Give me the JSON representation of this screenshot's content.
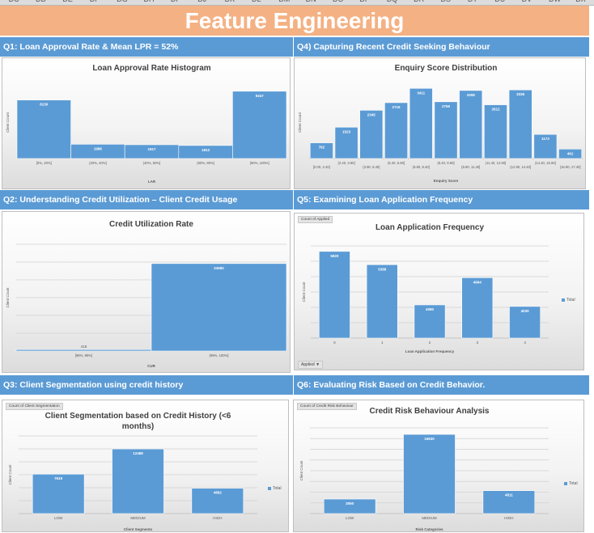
{
  "sheet": {
    "column_headers": [
      "DC",
      "DD",
      "DE",
      "DF",
      "DG",
      "DH",
      "DI",
      "DJ",
      "DK",
      "DL",
      "DM",
      "DN",
      "DO",
      "DP",
      "DQ",
      "DR",
      "DS",
      "DT",
      "DU",
      "DV",
      "DW",
      "DX"
    ],
    "title": "Feature Engineering",
    "colors": {
      "banner": "#f4b183",
      "section_bar": "#5b9bd5",
      "bar": "#5b9bd5"
    }
  },
  "sections": {
    "q1": "Q1: Loan Approval Rate & Mean LPR = 52%",
    "q2": "Q2: Understanding Credit Utilization – Client Credit Usage",
    "q3": "Q3: Client Segmentation using credit history",
    "q4": "Q4) Capturing Recent Credit Seeking Behaviour",
    "q5": "Q5: Examining Loan Application Frequency",
    "q6": "Q6: Evaluating Risk Based on Credit Behavior."
  },
  "chart_data": [
    {
      "id": "lar",
      "type": "bar",
      "title": "Loan Approval Rate Histogram",
      "xlabel": "LAR",
      "ylabel": "Client Count",
      "categories": [
        "[0%, 20%]",
        "(20%, 40%]",
        "(40%, 60%]",
        "(60%, 80%]",
        "(80%, 100%]"
      ],
      "values": [
        8130,
        1986,
        1917,
        1812,
        9347
      ],
      "ylim": [
        0,
        10000
      ],
      "grid": false,
      "legend": "none"
    },
    {
      "id": "enquiry",
      "type": "bar",
      "title": "Enquiry Score Distribution",
      "xlabel": "Enquiry Score",
      "ylabel": "Client Count",
      "categories": [
        "[0.00, 2.40]",
        "(2.40, 3.90]",
        "(3.90, 5.40]",
        "(5.40, 6.90]",
        "(6.90, 8.40]",
        "(8.40, 9.90]",
        "(9.90, 11.40]",
        "(11.40, 12.90]",
        "(12.90, 14.40]",
        "(14.40, 15.90]",
        "(15.90, 17.40]"
      ],
      "values": [
        762,
        1523,
        2345,
        2716,
        3411,
        2759,
        3308,
        2612,
        3335,
        1173,
        461
      ],
      "ylim": [
        0,
        3500
      ],
      "grid": false,
      "legend": "none"
    },
    {
      "id": "cur",
      "type": "bar",
      "title": "Credit Utilization Rate",
      "xlabel": "CUR",
      "ylabel": "Client Count",
      "categories": [
        "[98%, 99%]",
        "(99%, 100%]"
      ],
      "values": [
        418,
        24582
      ],
      "ylim": [
        0,
        30000
      ],
      "grid": true,
      "legend": "none"
    },
    {
      "id": "apps",
      "type": "bar",
      "title": "Loan Application Frequency",
      "xlabel": "Loan Application Frequency",
      "ylabel": "Client Count",
      "categories": [
        "0",
        "1",
        "2",
        "3",
        "4"
      ],
      "values": [
        5820,
        5388,
        4080,
        4964,
        4030
      ],
      "ylim": [
        3000,
        6000
      ],
      "grid": true,
      "legend": "right",
      "series_name": "Total",
      "pivot_field": "Count of Applied",
      "slicer": "Applied"
    },
    {
      "id": "segment",
      "type": "bar",
      "title": "Client Segmentation based on Credit History (<6 months)",
      "title_lines": [
        "Client Segmentation based on Credit History (<6",
        "months)"
      ],
      "xlabel": "Client Segments",
      "ylabel": "Client Count",
      "categories": [
        "LOW",
        "MEDIUM",
        "HIGH"
      ],
      "values": [
        7619,
        12488,
        4892
      ],
      "ylim": [
        0,
        15000
      ],
      "grid": true,
      "legend": "right",
      "series_name": "Total",
      "pivot_field": "Count of Client Segmentation"
    },
    {
      "id": "risk",
      "type": "bar",
      "title": "Credit Risk Behaviour Analysis",
      "xlabel": "Risk Categories",
      "ylabel": "Client Count",
      "categories": [
        "LOW",
        "MEDIUM",
        "HIGH"
      ],
      "values": [
        3050,
        16630,
        4811
      ],
      "ylim": [
        0,
        18000
      ],
      "grid": true,
      "legend": "right",
      "series_name": "Total",
      "pivot_field": "Count of Credit Risk Behaviour"
    }
  ]
}
